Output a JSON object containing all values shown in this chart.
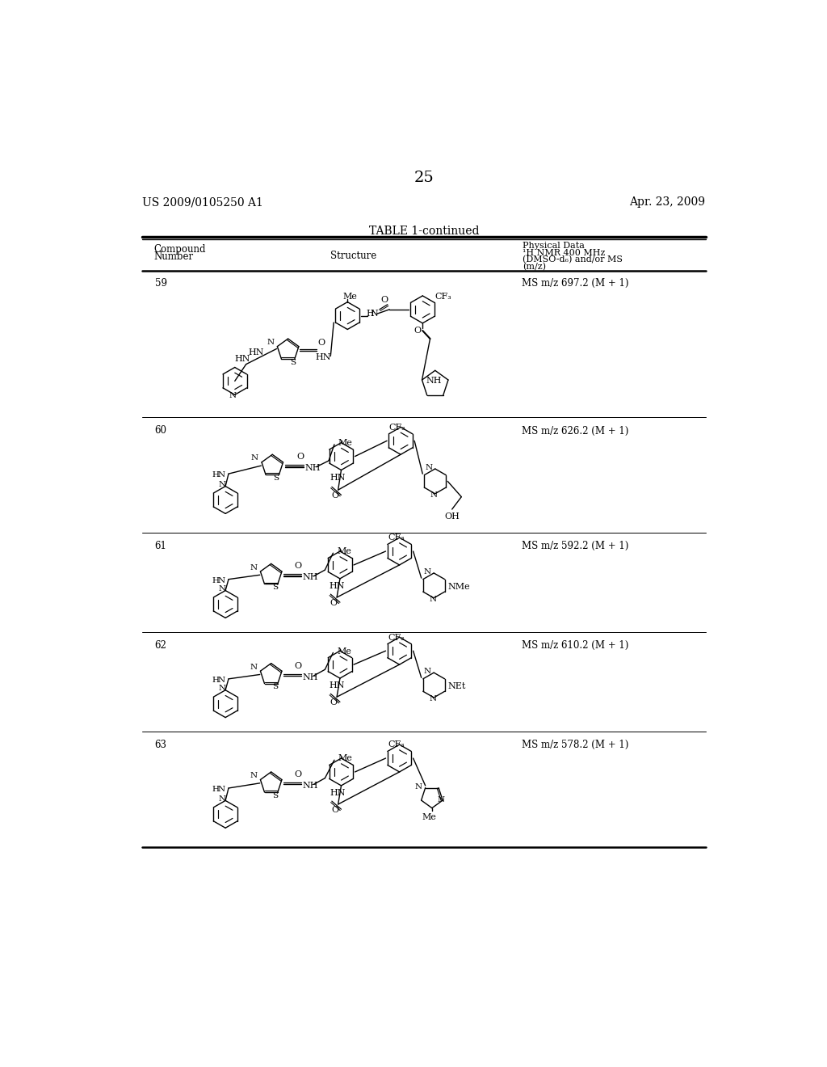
{
  "page_number": "25",
  "patent_number": "US 2009/0105250 A1",
  "patent_date": "Apr. 23, 2009",
  "table_title": "TABLE 1-continued",
  "compounds": [
    {
      "number": "59",
      "ms": "MS m/z 697.2 (M + 1)"
    },
    {
      "number": "60",
      "ms": "MS m/z 626.2 (M + 1)"
    },
    {
      "number": "61",
      "ms": "MS m/z 592.2 (M + 1)"
    },
    {
      "number": "62",
      "ms": "MS m/z 610.2 (M + 1)"
    },
    {
      "number": "63",
      "ms": "MS m/z 578.2 (M + 1)"
    }
  ],
  "row_boundaries": [
    228,
    465,
    650,
    810,
    970,
    1155
  ],
  "bg_color": "#ffffff"
}
